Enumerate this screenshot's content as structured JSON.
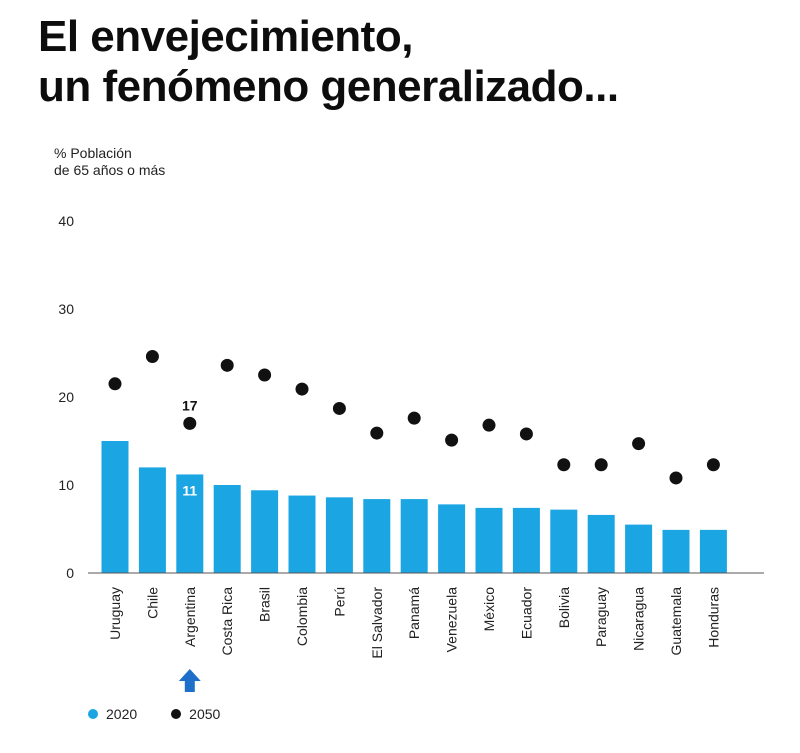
{
  "title": {
    "line1": "El envejecimiento,",
    "line2": "un fenómeno generalizado..."
  },
  "chart_data": {
    "type": "bar",
    "ylabel_line1": "% Población",
    "ylabel_line2": "de 65 años o más",
    "ylim": [
      0,
      40
    ],
    "yticks": [
      0,
      10,
      20,
      30,
      40
    ],
    "categories": [
      "Uruguay",
      "Chile",
      "Argentina",
      "Costa Rica",
      "Brasil",
      "Colombia",
      "Perú",
      "El Salvador",
      "Panamá",
      "Venezuela",
      "México",
      "Ecuador",
      "Bolivia",
      "Paraguay",
      "Nicaragua",
      "Guatemala",
      "Honduras"
    ],
    "series": [
      {
        "name": "2020",
        "kind": "bar",
        "color": "#1ba6e3",
        "values": [
          15,
          12,
          11.2,
          10,
          9.4,
          8.8,
          8.6,
          8.4,
          8.4,
          7.8,
          7.4,
          7.4,
          7.2,
          6.6,
          5.5,
          4.9,
          4.9
        ]
      },
      {
        "name": "2050",
        "kind": "dot",
        "color": "#111111",
        "values": [
          21.5,
          24.6,
          17,
          23.6,
          22.5,
          20.9,
          18.7,
          15.9,
          17.6,
          15.1,
          16.8,
          15.8,
          12.3,
          12.3,
          14.7,
          10.8,
          12.3
        ]
      }
    ],
    "annotations": {
      "highlight_category": "Argentina",
      "value_2020_label": "11",
      "value_2050_label": "17",
      "arrow_color": "#1e6fc9"
    },
    "legend": [
      {
        "label": "2020",
        "color": "#1ba6e3"
      },
      {
        "label": "2050",
        "color": "#111111"
      }
    ]
  }
}
